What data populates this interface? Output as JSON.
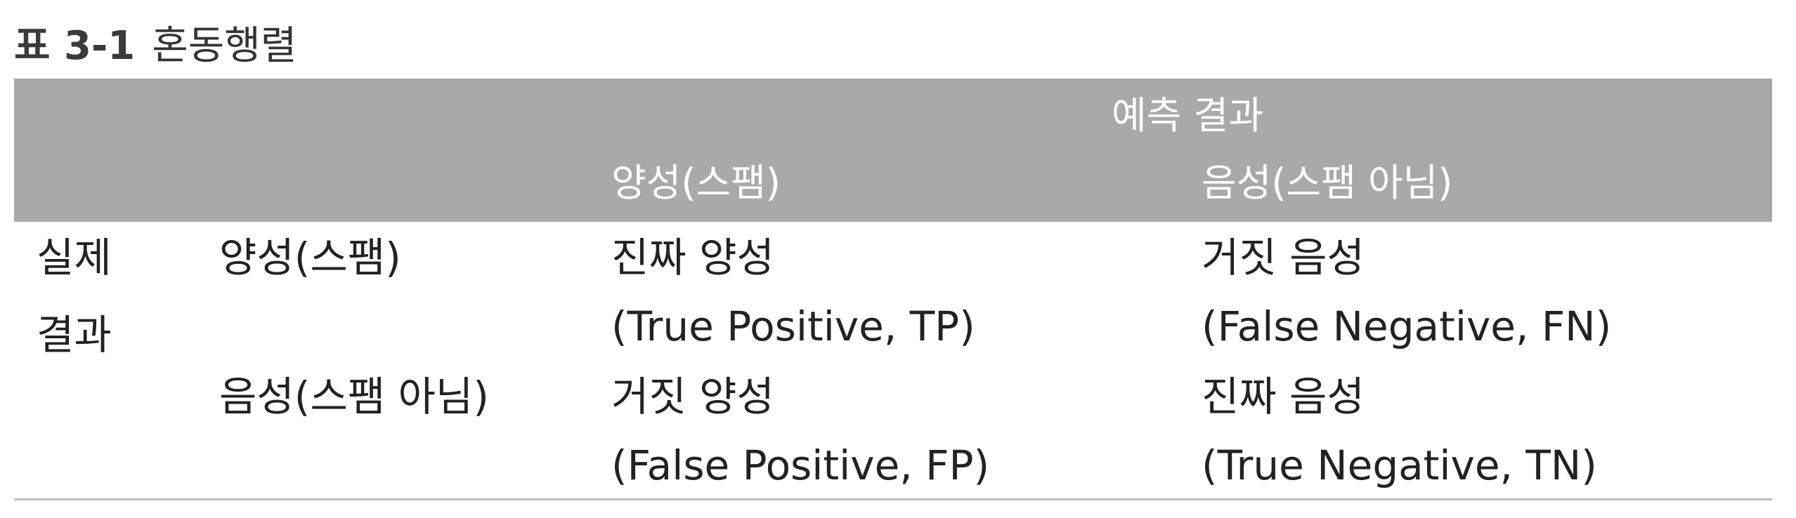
{
  "caption": {
    "number": "표 3-1",
    "title": "혼동행렬"
  },
  "header": {
    "group_label": "예측 결과",
    "col_positive": "양성(스팸)",
    "col_negative": "음성(스팸 아님)"
  },
  "rows": {
    "actual_label_line1": "실제",
    "actual_label_line2": "결과",
    "positive": {
      "label": "양성(스팸)",
      "pred_positive_ko": "진짜 양성",
      "pred_positive_en": "(True Positive, TP)",
      "pred_negative_ko": "거짓 음성",
      "pred_negative_en": "(False Negative, FN)"
    },
    "negative": {
      "label": "음성(스팸 아님)",
      "pred_positive_ko": "거짓 양성",
      "pred_positive_en": "(False Positive, FP)",
      "pred_negative_ko": "진짜 음성",
      "pred_negative_en": "(True Negative, TN)"
    }
  }
}
